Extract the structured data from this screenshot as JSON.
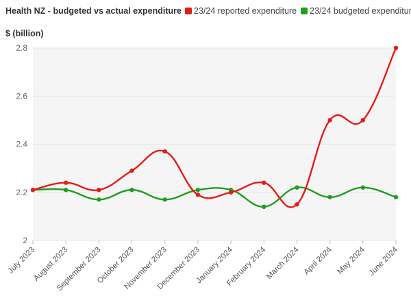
{
  "chart_data": {
    "type": "line",
    "title": "Health NZ - budgeted vs actual expenditure",
    "ylabel": "$ (billion)",
    "xlabel": "",
    "ylim": [
      2,
      2.8
    ],
    "yticks": [
      2,
      2.2,
      2.4,
      2.6,
      2.8
    ],
    "ytick_labels": [
      "2",
      "2.2",
      "2.4",
      "2.6",
      "2.8"
    ],
    "grid": true,
    "legend_position": "top",
    "categories": [
      "July 2023",
      "August 2023",
      "September 2023",
      "October 2023",
      "November 2023",
      "December 2023",
      "January 2024",
      "February 2024",
      "March 2024",
      "April 2024",
      "May 2024",
      "June 2024"
    ],
    "series": [
      {
        "name": "23/24 reported expenditure",
        "color": "#e41b17",
        "values": [
          2.21,
          2.24,
          2.21,
          2.29,
          2.37,
          2.19,
          2.2,
          2.24,
          2.15,
          2.5,
          2.5,
          2.8
        ]
      },
      {
        "name": "23/24 budgeted expenditure",
        "color": "#1f9e1f",
        "values": [
          2.21,
          2.21,
          2.17,
          2.21,
          2.17,
          2.21,
          2.21,
          2.14,
          2.22,
          2.18,
          2.22,
          2.18
        ]
      }
    ]
  }
}
